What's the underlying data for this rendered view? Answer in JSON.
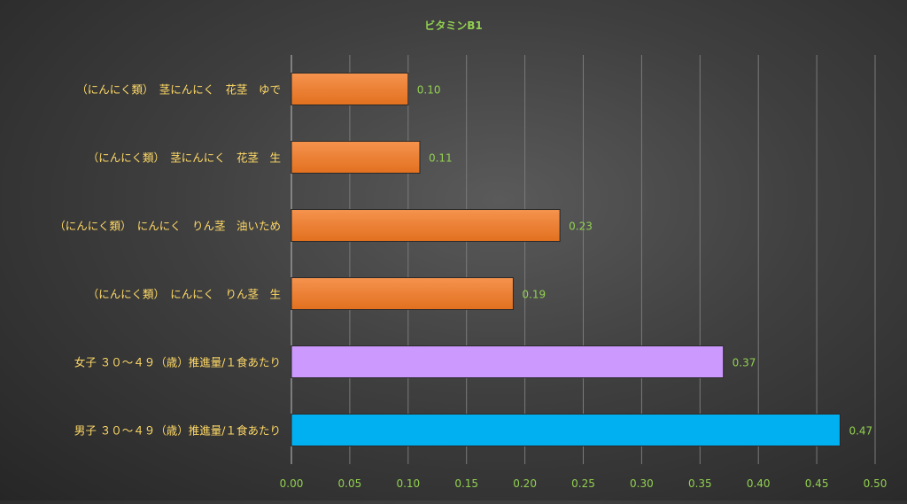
{
  "chart_data": {
    "type": "bar",
    "orientation": "horizontal",
    "title": "ビタミンB1",
    "categories": [
      "（にんにく類）　茎にんにく　花茎　ゆで",
      "（にんにく類）　茎にんにく　花茎　生",
      "（にんにく類）　にんにく　りん茎　油いため",
      "（にんにく類）　にんにく　りん茎　生",
      "女子 ３０～４９（歳）推進量/１食あたり",
      "男子 ３０～４９（歳）推進量/１食あたり"
    ],
    "values": [
      0.1,
      0.11,
      0.23,
      0.19,
      0.37,
      0.47
    ],
    "value_labels": [
      "0.10",
      "0.11",
      "0.23",
      "0.19",
      "0.37",
      "0.47"
    ],
    "bar_colors": [
      "#ed7d31",
      "#ed7d31",
      "#ed7d31",
      "#ed7d31",
      "#cc99ff",
      "#00b0f0"
    ],
    "xlim": [
      0,
      0.5
    ],
    "x_ticks": [
      "0.00",
      "0.05",
      "0.10",
      "0.15",
      "0.20",
      "0.25",
      "0.30",
      "0.35",
      "0.40",
      "0.45",
      "0.50"
    ],
    "grid": true,
    "legend": "none",
    "colors": {
      "title": "#92d050",
      "category_labels": "#ffd966",
      "tick_labels": "#92d050",
      "data_labels": "#92d050",
      "gridlines": "#7a7a7a"
    }
  }
}
